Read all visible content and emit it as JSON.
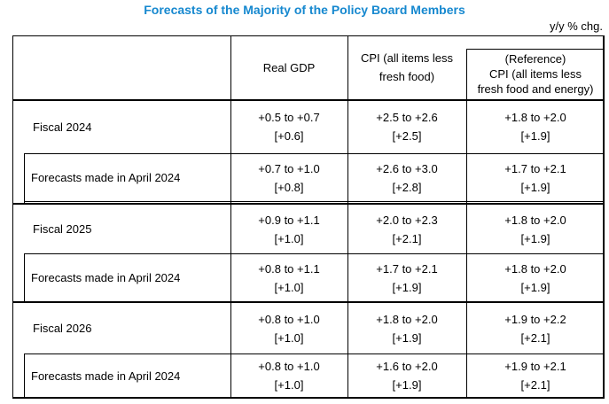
{
  "title": "Forecasts of the Majority of the Policy Board Members",
  "unit_note": "y/y % chg.",
  "colors": {
    "title_blue": "#1688cf",
    "border_black": "#000000",
    "background": "#ffffff"
  },
  "table": {
    "header": {
      "real_gdp": "Real GDP",
      "cpi": "CPI (all items less\nfresh food)",
      "cpi_reference": "(Reference)\nCPI (all items less\nfresh food and energy)"
    },
    "rows": [
      {
        "label": "Fiscal 2024",
        "real_gdp": {
          "range": "+0.5 to +0.7",
          "median": "[+0.6]"
        },
        "cpi": {
          "range": "+2.5 to +2.6",
          "median": "[+2.5]"
        },
        "cpi_reference": {
          "range": "+1.8 to +2.0",
          "median": "[+1.9]"
        }
      },
      {
        "label": "Forecasts made in April 2024",
        "real_gdp": {
          "range": "+0.7 to +1.0",
          "median": "[+0.8]"
        },
        "cpi": {
          "range": "+2.6 to +3.0",
          "median": "[+2.8]"
        },
        "cpi_reference": {
          "range": "+1.7 to +2.1",
          "median": "[+1.9]"
        }
      },
      {
        "label": "Fiscal 2025",
        "real_gdp": {
          "range": "+0.9 to +1.1",
          "median": "[+1.0]"
        },
        "cpi": {
          "range": "+2.0 to +2.3",
          "median": "[+2.1]"
        },
        "cpi_reference": {
          "range": "+1.8 to +2.0",
          "median": "[+1.9]"
        }
      },
      {
        "label": "Forecasts made in April 2024",
        "real_gdp": {
          "range": "+0.8 to +1.1",
          "median": "[+1.0]"
        },
        "cpi": {
          "range": "+1.7 to +2.1",
          "median": "[+1.9]"
        },
        "cpi_reference": {
          "range": "+1.8 to +2.0",
          "median": "[+1.9]"
        }
      },
      {
        "label": "Fiscal 2026",
        "real_gdp": {
          "range": "+0.8 to +1.0",
          "median": "[+1.0]"
        },
        "cpi": {
          "range": "+1.8 to +2.0",
          "median": "[+1.9]"
        },
        "cpi_reference": {
          "range": "+1.9 to +2.2",
          "median": "[+2.1]"
        }
      },
      {
        "label": "Forecasts made in April 2024",
        "real_gdp": {
          "range": "+0.8 to +1.0",
          "median": "[+1.0]"
        },
        "cpi": {
          "range": "+1.6 to +2.0",
          "median": "[+1.9]"
        },
        "cpi_reference": {
          "range": "+1.9 to +2.1",
          "median": "[+2.1]"
        }
      }
    ]
  }
}
